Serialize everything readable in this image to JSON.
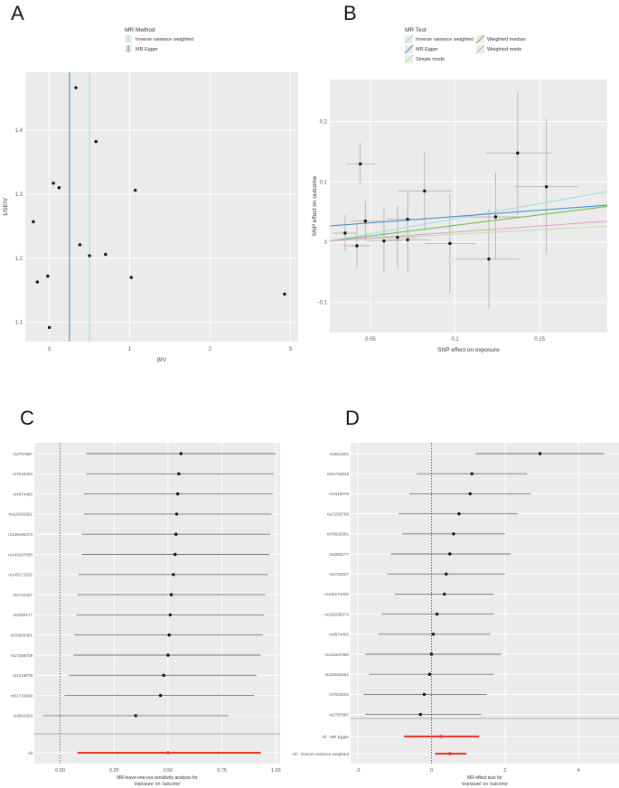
{
  "figure": {
    "panel_labels": [
      "A",
      "B",
      "C",
      "D"
    ]
  },
  "chart_data": [
    {
      "panel": "A",
      "type": "scatter",
      "title": "",
      "xlabel": "βIV",
      "ylabel": "1/SEIV",
      "xlim": [
        -0.3,
        3.1
      ],
      "ylim": [
        1.07,
        1.49
      ],
      "xticks": [
        0,
        1,
        2,
        3
      ],
      "yticks": [
        1.1,
        1.2,
        1.3,
        1.4
      ],
      "legend_title": "MR Method",
      "legend": [
        {
          "name": "Inverse variance weighted",
          "color": "#a6d9e3",
          "x": 0.5
        },
        {
          "name": "MR Egger",
          "color": "#4a90c8",
          "x": 0.25
        }
      ],
      "points": [
        {
          "x": -0.2,
          "y": 1.257
        },
        {
          "x": -0.15,
          "y": 1.163
        },
        {
          "x": -0.02,
          "y": 1.172
        },
        {
          "x": 0.0,
          "y": 1.092
        },
        {
          "x": 0.05,
          "y": 1.317
        },
        {
          "x": 0.12,
          "y": 1.31
        },
        {
          "x": 0.33,
          "y": 1.466
        },
        {
          "x": 0.38,
          "y": 1.221
        },
        {
          "x": 0.5,
          "y": 1.204
        },
        {
          "x": 0.58,
          "y": 1.382
        },
        {
          "x": 0.7,
          "y": 1.206
        },
        {
          "x": 1.02,
          "y": 1.17
        },
        {
          "x": 1.07,
          "y": 1.306
        },
        {
          "x": 2.93,
          "y": 1.144
        }
      ]
    },
    {
      "panel": "B",
      "type": "scatter",
      "title": "",
      "xlabel": "SNP effect on exposure",
      "ylabel": "SNP effect on outcome",
      "xlim": [
        0.026,
        0.19
      ],
      "ylim": [
        -0.15,
        0.27
      ],
      "xticks": [
        0.05,
        0.1,
        0.15
      ],
      "yticks": [
        -0.1,
        0.0,
        0.1,
        0.2
      ],
      "legend_title": "MR Test",
      "legend": [
        {
          "name": "Inverse variance weighted",
          "color": "#a6d9e3",
          "y0": 0.0,
          "slope": 0.5
        },
        {
          "name": "MR Egger",
          "color": "#4a90c8",
          "y0": 0.025,
          "slope": 0.21
        },
        {
          "name": "Simple mode",
          "color": "#bfe3a8",
          "y0": 0.0,
          "slope": 0.15
        },
        {
          "name": "Weighted median",
          "color": "#6fbf4c",
          "y0": 0.0,
          "slope": 0.35
        },
        {
          "name": "Weighted mode",
          "color": "#e8a0c8",
          "y0": 0.0,
          "slope": 0.2
        }
      ],
      "points": [
        {
          "x": 0.035,
          "y": 0.015,
          "xlo": 0.028,
          "xhi": 0.042,
          "ylo": -0.015,
          "yhi": 0.045
        },
        {
          "x": 0.042,
          "y": -0.006,
          "xlo": 0.034,
          "xhi": 0.05,
          "ylo": -0.042,
          "yhi": 0.03
        },
        {
          "x": 0.044,
          "y": 0.13,
          "xlo": 0.036,
          "xhi": 0.053,
          "ylo": 0.095,
          "yhi": 0.165
        },
        {
          "x": 0.047,
          "y": 0.035,
          "xlo": 0.038,
          "xhi": 0.057,
          "ylo": 0.002,
          "yhi": 0.068
        },
        {
          "x": 0.058,
          "y": 0.002,
          "xlo": 0.048,
          "xhi": 0.068,
          "ylo": -0.05,
          "yhi": 0.055
        },
        {
          "x": 0.066,
          "y": 0.008,
          "xlo": 0.055,
          "xhi": 0.077,
          "ylo": -0.045,
          "yhi": 0.06
        },
        {
          "x": 0.072,
          "y": 0.038,
          "xlo": 0.06,
          "xhi": 0.083,
          "ylo": -0.01,
          "yhi": 0.085
        },
        {
          "x": 0.072,
          "y": 0.004,
          "xlo": 0.06,
          "xhi": 0.085,
          "ylo": -0.05,
          "yhi": 0.058
        },
        {
          "x": 0.082,
          "y": 0.085,
          "xlo": 0.066,
          "xhi": 0.098,
          "ylo": 0.02,
          "yhi": 0.15
        },
        {
          "x": 0.097,
          "y": -0.002,
          "xlo": 0.082,
          "xhi": 0.112,
          "ylo": -0.085,
          "yhi": 0.08
        },
        {
          "x": 0.12,
          "y": -0.028,
          "xlo": 0.1,
          "xhi": 0.138,
          "ylo": -0.11,
          "yhi": 0.055
        },
        {
          "x": 0.124,
          "y": 0.042,
          "xlo": 0.108,
          "xhi": 0.14,
          "ylo": -0.03,
          "yhi": 0.115
        },
        {
          "x": 0.137,
          "y": 0.148,
          "xlo": 0.118,
          "xhi": 0.157,
          "ylo": 0.045,
          "yhi": 0.25
        },
        {
          "x": 0.154,
          "y": 0.092,
          "xlo": 0.135,
          "xhi": 0.173,
          "ylo": -0.02,
          "yhi": 0.205
        }
      ]
    },
    {
      "panel": "C",
      "type": "forest",
      "title": "",
      "xlabel": "MR leave-one-out sensitivity analysis for\n'exposure' on 'outcome'",
      "ylabel": "",
      "xlim": [
        -0.12,
        1.02
      ],
      "xticks": [
        0.0,
        0.25,
        0.5,
        0.75,
        1.0
      ],
      "xticklabels": [
        "0.00",
        "0.25",
        "0.50",
        "0.75",
        "1.00"
      ],
      "rows": [
        {
          "label": "rs2797687",
          "est": 0.56,
          "lo": 0.12,
          "hi": 1.0
        },
        {
          "label": "rs7043204",
          "est": 0.55,
          "lo": 0.12,
          "hi": 0.99
        },
        {
          "label": "rs4674463",
          "est": 0.545,
          "lo": 0.11,
          "hi": 0.985
        },
        {
          "label": "rs118162561",
          "est": 0.54,
          "lo": 0.11,
          "hi": 0.98
        },
        {
          "label": "rs139195374",
          "est": 0.537,
          "lo": 0.1,
          "hi": 0.975
        },
        {
          "label": "rs143347000",
          "est": 0.533,
          "lo": 0.1,
          "hi": 0.97
        },
        {
          "label": "rs145171032",
          "est": 0.525,
          "lo": 0.085,
          "hi": 0.965
        },
        {
          "label": "rs4722327",
          "est": 0.515,
          "lo": 0.08,
          "hi": 0.95
        },
        {
          "label": "rs2283177",
          "est": 0.51,
          "lo": 0.075,
          "hi": 0.945
        },
        {
          "label": "rs76926361",
          "est": 0.505,
          "lo": 0.065,
          "hi": 0.94
        },
        {
          "label": "rs17258709",
          "est": 0.5,
          "lo": 0.06,
          "hi": 0.93
        },
        {
          "label": "rs1016079",
          "est": 0.48,
          "lo": 0.04,
          "hi": 0.91
        },
        {
          "label": "rs61742849",
          "est": 0.465,
          "lo": 0.02,
          "hi": 0.9
        },
        {
          "label": "rs3911603",
          "est": 0.35,
          "lo": -0.08,
          "hi": 0.78
        }
      ],
      "summary": {
        "label": "All",
        "est": 0.5,
        "lo": 0.08,
        "hi": 0.93,
        "color": "#e8322a"
      }
    },
    {
      "panel": "D",
      "type": "forest",
      "title": "",
      "xlabel": "MR effect size for\n'exposure' on 'outcome'",
      "ylabel": "",
      "xlim": [
        -2.2,
        5.1
      ],
      "xticks": [
        -2,
        0,
        2,
        4
      ],
      "xticklabels": [
        "-2",
        "0",
        "2",
        "4"
      ],
      "rows": [
        {
          "label": "rs3911603",
          "est": 2.95,
          "lo": 1.2,
          "hi": 4.7
        },
        {
          "label": "rs61742849",
          "est": 1.1,
          "lo": -0.4,
          "hi": 2.6
        },
        {
          "label": "rs1016079",
          "est": 1.05,
          "lo": -0.6,
          "hi": 2.7
        },
        {
          "label": "rs17258709",
          "est": 0.75,
          "lo": -0.9,
          "hi": 2.35
        },
        {
          "label": "rs76926361",
          "est": 0.6,
          "lo": -0.8,
          "hi": 2.0
        },
        {
          "label": "rs2283177",
          "est": 0.5,
          "lo": -1.1,
          "hi": 2.15
        },
        {
          "label": "rs4722327",
          "est": 0.4,
          "lo": -1.2,
          "hi": 2.0
        },
        {
          "label": "rs145171032",
          "est": 0.35,
          "lo": -1.0,
          "hi": 1.7
        },
        {
          "label": "rs139195374",
          "est": 0.15,
          "lo": -1.35,
          "hi": 1.7
        },
        {
          "label": "rs4674463",
          "est": 0.05,
          "lo": -1.45,
          "hi": 1.6
        },
        {
          "label": "rs143347000",
          "est": 0.0,
          "lo": -1.8,
          "hi": 1.9
        },
        {
          "label": "rs118162561",
          "est": -0.05,
          "lo": -1.7,
          "hi": 1.7
        },
        {
          "label": "rs7043204",
          "est": -0.2,
          "lo": -1.85,
          "hi": 1.5
        },
        {
          "label": "rs2797687",
          "est": -0.3,
          "lo": -1.8,
          "hi": 1.35
        }
      ],
      "summary_rows": [
        {
          "label": "All - MR Egger",
          "est": 0.25,
          "lo": -0.75,
          "hi": 1.3,
          "color": "#e8322a"
        },
        {
          "label": "All - Inverse variance weighted",
          "est": 0.5,
          "lo": 0.1,
          "hi": 0.95,
          "color": "#e8322a"
        }
      ]
    }
  ]
}
